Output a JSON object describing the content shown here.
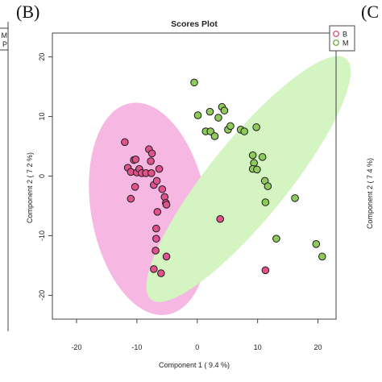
{
  "panel_label_left": "(B)",
  "panel_label_right": "(C",
  "left_fragment": {
    "legend_lines": [
      "M",
      "P"
    ]
  },
  "right_fragment": {
    "axis_label": "Component 2 ( 7 4 %)"
  },
  "chart_data": {
    "type": "scatter",
    "title": "Scores Plot",
    "xlabel": "Component 1 ( 9.4 %)",
    "ylabel": "Component 2 ( 7 2 %)",
    "xlim": [
      -24,
      23
    ],
    "ylim": [
      -24,
      24
    ],
    "xticks": [
      -20,
      -10,
      0,
      10,
      20
    ],
    "yticks": [
      -20,
      -10,
      0,
      10,
      20
    ],
    "legend_position": "top-right",
    "series": [
      {
        "name": "B",
        "point_color": "#d6397a",
        "fill_color": "#e0528c",
        "ellipse": {
          "cx": -8,
          "cy": -5.5,
          "rx": 9.6,
          "ry": 18,
          "angle_deg": -10,
          "color": "#f7b7e3"
        },
        "points": [
          [
            -12,
            5.7
          ],
          [
            -11.5,
            1.4
          ],
          [
            -11,
            0.7
          ],
          [
            -11,
            -3.8
          ],
          [
            -10.5,
            2.7
          ],
          [
            -10.2,
            2.8
          ],
          [
            -10.3,
            -1.8
          ],
          [
            -10,
            0.6
          ],
          [
            -9.6,
            1.2
          ],
          [
            -9.2,
            0.5
          ],
          [
            -8.5,
            0.5
          ],
          [
            -8,
            4.5
          ],
          [
            -7.7,
            2.5
          ],
          [
            -7.5,
            3.8
          ],
          [
            -7.6,
            0.5
          ],
          [
            -7.2,
            -1.5
          ],
          [
            -6.7,
            -0.8
          ],
          [
            -6.3,
            1.2
          ],
          [
            -5.8,
            -2.2
          ],
          [
            -5.4,
            -3.5
          ],
          [
            -5.2,
            -4.5
          ],
          [
            -5.1,
            -4.8
          ],
          [
            -6.6,
            -6
          ],
          [
            -6.8,
            -8.8
          ],
          [
            -6.8,
            -10.5
          ],
          [
            -6.9,
            -12.5
          ],
          [
            -5.1,
            -13.5
          ],
          [
            -7.2,
            -15.6
          ],
          [
            -6,
            -16.3
          ],
          [
            3.8,
            -7.2
          ],
          [
            11.3,
            -15.8
          ]
        ]
      },
      {
        "name": "M",
        "point_color": "#5ea83a",
        "fill_color": "#8fcb5a",
        "ellipse": {
          "cx": 8.5,
          "cy": -0.5,
          "rx": 6.5,
          "ry": 26,
          "angle_deg": 39,
          "color": "#d4f4c1"
        },
        "points": [
          [
            -0.5,
            15.7
          ],
          [
            0.1,
            10.2
          ],
          [
            1.4,
            7.5
          ],
          [
            2.1,
            10.8
          ],
          [
            2.2,
            7.5
          ],
          [
            2.9,
            6.7
          ],
          [
            3.5,
            9.8
          ],
          [
            4.1,
            11.6
          ],
          [
            4.5,
            11
          ],
          [
            5.1,
            7.8
          ],
          [
            5.5,
            8.4
          ],
          [
            7.2,
            7.8
          ],
          [
            7.8,
            7.5
          ],
          [
            9.2,
            3.5
          ],
          [
            9.8,
            8.2
          ],
          [
            9.4,
            2.2
          ],
          [
            9.2,
            1.2
          ],
          [
            9.9,
            1.1
          ],
          [
            10.8,
            3.2
          ],
          [
            11.2,
            -0.8
          ],
          [
            11.7,
            -1.7
          ],
          [
            11.3,
            -4.4
          ],
          [
            13.1,
            -10.5
          ],
          [
            16.2,
            -3.7
          ],
          [
            19.7,
            -11.4
          ],
          [
            20.7,
            -13.5
          ]
        ]
      }
    ]
  }
}
